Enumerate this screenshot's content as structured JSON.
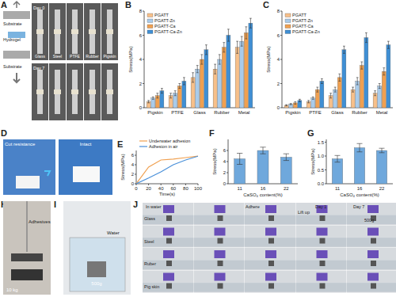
{
  "panels": {
    "A": {
      "label": "A",
      "days": [
        "Day 0",
        "Day 7"
      ],
      "substrates": [
        "Glass",
        "Steel",
        "PTFE",
        "Rubber",
        "Pigskin"
      ],
      "layers": [
        "Substrate",
        "Hydrogel",
        "Substrate"
      ]
    },
    "D": {
      "label": "D",
      "texts": [
        "Cut resistance",
        "Intact"
      ]
    },
    "H": {
      "label": "H",
      "texts": [
        "Adhesives",
        "10 kg"
      ]
    },
    "I": {
      "label": "I",
      "texts": [
        "Water",
        "500g"
      ]
    },
    "J": {
      "label": "J",
      "rows": [
        "Glass",
        "Steel",
        "Ruber",
        "Pig skin"
      ],
      "texts": [
        "In water",
        "Adhere",
        "Day 1",
        "Lift up",
        "Day 7",
        "500g"
      ]
    }
  },
  "chart_data": [
    {
      "panel": "B",
      "type": "bar",
      "y_label": "Stress(MPa)",
      "categories": [
        "Pigskin",
        "PTFE",
        "Glass",
        "Rubber",
        "Metal"
      ],
      "ylim": [
        0,
        8
      ],
      "yticks": [
        0,
        2,
        4,
        6,
        8
      ],
      "legend": "top-left",
      "series": [
        {
          "name": "PGATT",
          "color": "#f7c08a",
          "values": [
            0.5,
            1.0,
            2.5,
            3.2,
            5.0
          ],
          "errors": [
            0.1,
            0.2,
            0.4,
            0.4,
            0.5
          ]
        },
        {
          "name": "PGATT-Zn",
          "color": "#a9cbea",
          "values": [
            0.8,
            1.2,
            3.2,
            4.0,
            5.5
          ],
          "errors": [
            0.1,
            0.2,
            0.3,
            0.4,
            0.4
          ]
        },
        {
          "name": "PGATT-Ca",
          "color": "#f0a050",
          "values": [
            1.0,
            1.8,
            4.0,
            5.0,
            6.2
          ],
          "errors": [
            0.2,
            0.2,
            0.4,
            0.4,
            0.5
          ]
        },
        {
          "name": "PGATT-Ca-Zn",
          "color": "#3f8fd4",
          "values": [
            1.4,
            2.2,
            4.8,
            6.0,
            7.0
          ],
          "errors": [
            0.2,
            0.3,
            0.4,
            0.5,
            0.4
          ]
        }
      ]
    },
    {
      "panel": "C",
      "type": "bar",
      "y_label": "Stress(MPa)",
      "categories": [
        "Pigskin",
        "PTFE",
        "Glass",
        "Rubber",
        "Metal"
      ],
      "ylim": [
        0,
        8
      ],
      "yticks": [
        0,
        2,
        4,
        6,
        8
      ],
      "legend": "top-left",
      "series": [
        {
          "name": "PGATT",
          "color": "#f7c08a",
          "values": [
            0.2,
            0.5,
            1.0,
            1.5,
            1.2
          ],
          "errors": [
            0.05,
            0.1,
            0.2,
            0.2,
            0.2
          ]
        },
        {
          "name": "PGATT-Zn",
          "color": "#a9cbea",
          "values": [
            0.3,
            0.8,
            1.5,
            2.2,
            1.8
          ],
          "errors": [
            0.05,
            0.1,
            0.2,
            0.3,
            0.2
          ]
        },
        {
          "name": "PGATT-Ca",
          "color": "#f0a050",
          "values": [
            0.4,
            1.5,
            2.5,
            3.5,
            3.0
          ],
          "errors": [
            0.1,
            0.2,
            0.3,
            0.3,
            0.3
          ]
        },
        {
          "name": "PGATT-Ca-Zn",
          "color": "#3f8fd4",
          "values": [
            0.6,
            2.2,
            4.8,
            5.8,
            5.2
          ],
          "errors": [
            0.1,
            0.2,
            0.3,
            0.4,
            0.3
          ]
        }
      ]
    },
    {
      "panel": "E",
      "type": "line",
      "x_label": "Time(s)",
      "y_label": "Stress(MPa)",
      "xlim": [
        0,
        100
      ],
      "xticks": [
        0,
        20,
        40,
        60,
        80,
        100
      ],
      "ylim": [
        0,
        7
      ],
      "yticks": [
        0,
        2,
        4,
        6
      ],
      "legend": "top",
      "x": [
        0,
        20,
        40,
        60,
        80,
        100
      ],
      "series": [
        {
          "name": "Underwater adhesion",
          "color": "#f0a050",
          "values": [
            0,
            3.5,
            5.0,
            5.2,
            5.5,
            5.8
          ]
        },
        {
          "name": "Adhesion in air",
          "color": "#4a90d9",
          "values": [
            0,
            1.2,
            2.5,
            4.0,
            5.0,
            5.8
          ]
        }
      ]
    },
    {
      "panel": "F",
      "type": "bar",
      "x_label": "CaSO₄ content(%)",
      "y_label": "Stress(MPa)",
      "categories": [
        "11",
        "16",
        "22"
      ],
      "ylim": [
        0,
        8
      ],
      "yticks": [
        0,
        2,
        4,
        6
      ],
      "color": "#6fa8dc",
      "values": [
        4.5,
        6.0,
        4.8
      ],
      "errors": [
        1.0,
        0.6,
        0.6
      ]
    },
    {
      "panel": "G",
      "type": "bar",
      "x_label": "CaSO₄ content(%)",
      "y_label": "Stress(MPa)",
      "categories": [
        "11",
        "16",
        "22"
      ],
      "ylim": [
        0,
        1.6
      ],
      "yticks": [
        {
          "value": 0,
          "label": "0.0"
        },
        {
          "value": 0.5,
          "label": "0.5"
        },
        {
          "value": 1,
          "label": "1.0"
        },
        {
          "value": 1.5,
          "label": "1.5"
        }
      ],
      "color": "#6fa8dc",
      "values": [
        0.9,
        1.3,
        1.2
      ],
      "errors": [
        0.12,
        0.15,
        0.08
      ]
    }
  ]
}
